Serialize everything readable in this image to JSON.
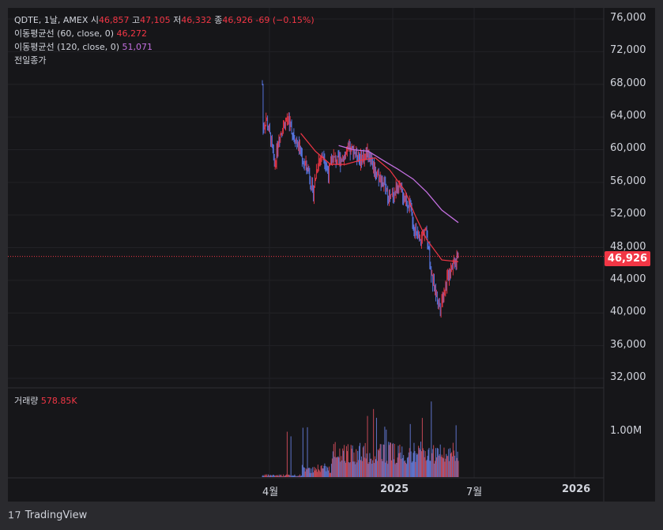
{
  "header": {
    "symbol_line": "QDTE, 1날, AMEX",
    "open_label": "시",
    "open": "46,857",
    "high_label": "고",
    "high": "47,105",
    "low_label": "저",
    "low": "46,332",
    "close_label": "종",
    "close": "46,926",
    "change": "-69 (−0.15%)"
  },
  "indicators": [
    {
      "label": "이동평균선 (60, close, 0)",
      "value": "46,272"
    },
    {
      "label": "이동평균선 (120, close, 0)",
      "value": "51,071"
    }
  ],
  "prev_close_label": "전일종가",
  "volume": {
    "label": "거래량",
    "value": "578.85K",
    "tick": "1.00M"
  },
  "price_badge": "46,926",
  "brand": "TradingView",
  "colors": {
    "up": "#f23645",
    "down": "#5b7cf0",
    "ma60": "#f23645",
    "ma120": "#c36fe0",
    "bg": "#161619"
  },
  "chart_data": {
    "type": "candlestick",
    "y_ticks": [
      "76,000",
      "72,000",
      "68,000",
      "64,000",
      "60,000",
      "56,000",
      "52,000",
      "48,000",
      "44,000",
      "40,000",
      "36,000",
      "32,000"
    ],
    "x_ticks": [
      "4월",
      "2025",
      "7월",
      "2026"
    ],
    "ylim": [
      30000,
      78000
    ],
    "last_price": 46926,
    "price_path": [
      [
        "2024-03-28",
        68000
      ],
      [
        "2024-03-29",
        62500
      ],
      [
        "2024-04-05",
        63800
      ],
      [
        "2024-04-15",
        61000
      ],
      [
        "2024-04-22",
        58000
      ],
      [
        "2024-05-01",
        61500
      ],
      [
        "2024-05-10",
        63000
      ],
      [
        "2024-05-20",
        63800
      ],
      [
        "2024-05-30",
        62000
      ],
      [
        "2024-06-10",
        60500
      ],
      [
        "2024-06-20",
        58500
      ],
      [
        "2024-07-01",
        57500
      ],
      [
        "2024-07-10",
        54500
      ],
      [
        "2024-07-20",
        58500
      ],
      [
        "2024-08-01",
        59500
      ],
      [
        "2024-08-10",
        57000
      ],
      [
        "2024-08-20",
        59000
      ],
      [
        "2024-09-01",
        58500
      ],
      [
        "2024-09-15",
        59500
      ],
      [
        "2024-10-01",
        60000
      ],
      [
        "2024-10-15",
        58800
      ],
      [
        "2024-11-01",
        59700
      ],
      [
        "2024-11-15",
        57500
      ],
      [
        "2024-12-01",
        56000
      ],
      [
        "2024-12-15",
        53800
      ],
      [
        "2025-01-01",
        55500
      ],
      [
        "2025-01-15",
        54000
      ],
      [
        "2025-01-25",
        53200
      ],
      [
        "2025-02-05",
        50000
      ],
      [
        "2025-02-15",
        48500
      ],
      [
        "2025-02-25",
        50500
      ],
      [
        "2025-03-05",
        48200
      ],
      [
        "2025-03-12",
        44000
      ],
      [
        "2025-03-20",
        42500
      ],
      [
        "2025-03-28",
        40800
      ],
      [
        "2025-04-05",
        42500
      ],
      [
        "2025-04-12",
        44000
      ],
      [
        "2025-04-20",
        45800
      ],
      [
        "2025-04-28",
        46500
      ],
      [
        "2025-05-05",
        46900
      ]
    ],
    "ma60_path": [
      [
        "2024-06-15",
        62000
      ],
      [
        "2024-07-15",
        59800
      ],
      [
        "2024-08-15",
        58200
      ],
      [
        "2024-09-15",
        58200
      ],
      [
        "2024-10-15",
        58700
      ],
      [
        "2024-11-15",
        59000
      ],
      [
        "2024-12-15",
        57500
      ],
      [
        "2025-01-15",
        55000
      ],
      [
        "2025-02-05",
        52000
      ],
      [
        "2025-03-01",
        49000
      ],
      [
        "2025-04-01",
        46500
      ],
      [
        "2025-05-05",
        46272
      ]
    ],
    "ma120_path": [
      [
        "2024-09-01",
        60500
      ],
      [
        "2024-10-01",
        60000
      ],
      [
        "2024-11-01",
        59800
      ],
      [
        "2024-12-01",
        58700
      ],
      [
        "2025-01-01",
        57600
      ],
      [
        "2025-02-01",
        56400
      ],
      [
        "2025-03-01",
        54800
      ],
      [
        "2025-04-01",
        52600
      ],
      [
        "2025-05-05",
        51071
      ]
    ],
    "volume_ylim": [
      0,
      1700000
    ]
  }
}
